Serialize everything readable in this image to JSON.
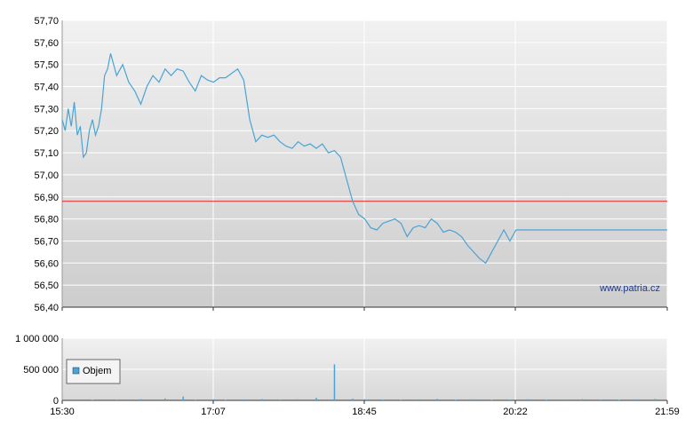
{
  "chart_data": [
    {
      "type": "line",
      "ylim": [
        56.4,
        57.7
      ],
      "yticks": [
        57.7,
        57.6,
        57.5,
        57.4,
        57.3,
        57.2,
        57.1,
        57.0,
        56.9,
        56.8,
        56.7,
        56.6,
        56.5,
        56.4
      ],
      "ytick_labels": [
        "57,70",
        "57,60",
        "57,50",
        "57,40",
        "57,30",
        "57,20",
        "57,10",
        "57,00",
        "56,90",
        "56,80",
        "56,70",
        "56,60",
        "56,50",
        "56,40"
      ],
      "reference_line": 56.88,
      "watermark": "www.patria.cz",
      "grid": true,
      "colors": {
        "line": "#4aa3d4",
        "reference": "#e02020",
        "bg_top": "#f1f1f1",
        "bg_bottom": "#cdcdcd"
      },
      "series": [
        {
          "x": [
            0,
            0.005,
            0.01,
            0.015,
            0.02,
            0.025,
            0.03,
            0.035,
            0.04,
            0.045,
            0.05,
            0.055,
            0.06,
            0.065,
            0.07,
            0.075,
            0.08,
            0.09,
            0.1,
            0.11,
            0.12,
            0.13,
            0.14,
            0.15,
            0.16,
            0.17,
            0.18,
            0.19,
            0.2,
            0.21,
            0.22,
            0.23,
            0.24,
            0.25,
            0.26,
            0.27,
            0.28,
            0.29,
            0.3,
            0.31,
            0.32,
            0.33,
            0.34,
            0.35,
            0.36,
            0.37,
            0.38,
            0.39,
            0.4,
            0.41,
            0.42,
            0.43,
            0.44,
            0.45,
            0.46,
            0.47,
            0.48,
            0.49,
            0.5,
            0.51,
            0.52,
            0.53,
            0.54,
            0.55,
            0.56,
            0.57,
            0.58,
            0.59,
            0.6,
            0.61,
            0.62,
            0.63,
            0.64,
            0.65,
            0.66,
            0.67,
            0.68,
            0.69,
            0.7,
            0.71,
            0.72,
            0.73,
            0.74,
            0.75,
            0.76,
            0.77,
            0.78,
            0.79,
            0.8,
            0.81,
            0.82,
            0.83,
            0.84,
            0.85,
            0.86,
            0.87,
            0.88,
            0.89,
            0.9,
            0.91,
            0.92,
            0.93,
            0.94,
            0.95,
            0.96,
            0.97,
            0.98,
            0.99,
            1.0
          ],
          "values": [
            57.25,
            57.2,
            57.3,
            57.22,
            57.33,
            57.18,
            57.22,
            57.08,
            57.1,
            57.2,
            57.25,
            57.18,
            57.22,
            57.3,
            57.45,
            57.48,
            57.55,
            57.45,
            57.5,
            57.42,
            57.38,
            57.32,
            57.4,
            57.45,
            57.42,
            57.48,
            57.45,
            57.48,
            57.47,
            57.42,
            57.38,
            57.45,
            57.43,
            57.42,
            57.44,
            57.44,
            57.46,
            57.48,
            57.43,
            57.25,
            57.15,
            57.18,
            57.17,
            57.18,
            57.15,
            57.13,
            57.12,
            57.15,
            57.13,
            57.14,
            57.12,
            57.14,
            57.1,
            57.11,
            57.08,
            56.98,
            56.88,
            56.82,
            56.8,
            56.76,
            56.75,
            56.78,
            56.79,
            56.8,
            56.78,
            56.72,
            56.76,
            56.77,
            56.76,
            56.8,
            56.78,
            56.74,
            56.75,
            56.74,
            56.72,
            56.68,
            56.65,
            56.62,
            56.6,
            56.65,
            56.7,
            56.75,
            56.7,
            56.75,
            56.75,
            56.75,
            56.75,
            56.75,
            56.75,
            56.75,
            56.75,
            56.75,
            56.75,
            56.75,
            56.75,
            56.75,
            56.75,
            56.75,
            56.75,
            56.75,
            56.75,
            56.75,
            56.75,
            56.75,
            56.75,
            56.75,
            56.75,
            56.75,
            56.75
          ]
        }
      ]
    },
    {
      "type": "bar",
      "ylim": [
        0,
        1000000
      ],
      "yticks": [
        1000000,
        500000,
        0
      ],
      "ytick_labels": [
        "1 000 000",
        "500 000",
        "0"
      ],
      "legend": "Objem",
      "grid": true,
      "colors": {
        "bar": "#4aa3d4",
        "legend_box": "#4aa3d4"
      },
      "x_tick_labels": [
        "15:30",
        "17:07",
        "18:45",
        "20:22",
        "21:59"
      ],
      "series": [
        {
          "name": "Objem",
          "x": [
            0.02,
            0.05,
            0.09,
            0.13,
            0.17,
            0.2,
            0.22,
            0.25,
            0.27,
            0.3,
            0.33,
            0.36,
            0.39,
            0.42,
            0.45,
            0.48,
            0.5,
            0.53,
            0.56,
            0.59,
            0.62,
            0.65,
            0.68,
            0.71,
            0.74,
            0.77,
            0.8,
            0.83,
            0.86,
            0.89,
            0.92,
            0.95,
            0.98
          ],
          "values": [
            15000,
            8000,
            12000,
            20000,
            30000,
            62000,
            10000,
            18000,
            9000,
            14000,
            20000,
            12000,
            18000,
            40000,
            580000,
            25000,
            18000,
            12000,
            9000,
            14000,
            22000,
            10000,
            16000,
            8000,
            12000,
            18000,
            10000,
            14000,
            20000,
            12000,
            9000,
            15000,
            22000
          ]
        }
      ]
    }
  ]
}
